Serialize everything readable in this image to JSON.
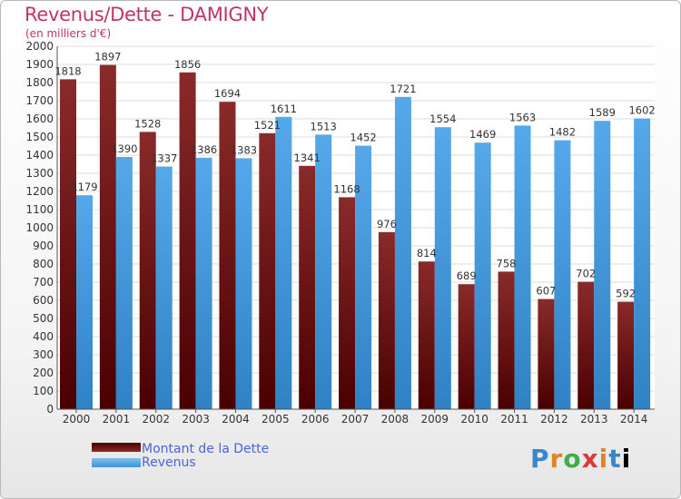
{
  "title": "Revenus/Dette - DAMIGNY",
  "subtitle": "(en milliers d'€)",
  "logo_text": "Proxiti",
  "logo_letters": [
    "P",
    "r",
    "o",
    "x",
    "i",
    "t",
    "i"
  ],
  "colors": {
    "title": "#c0346a",
    "debt_top": "#8a2a2a",
    "debt_bottom": "#4a0000",
    "revenue_top": "#7ec0f0",
    "revenue_bottom": "#3d94d6",
    "legend_text": "#4b63d6",
    "grid": "#dddddd"
  },
  "legend": {
    "debt_label": "Montant de la Dette",
    "revenue_label": "Revenus"
  },
  "chart_data": {
    "type": "bar",
    "categories": [
      "2000",
      "2001",
      "2002",
      "2003",
      "2004",
      "2005",
      "2006",
      "2007",
      "2008",
      "2009",
      "2010",
      "2011",
      "2012",
      "2013",
      "2014"
    ],
    "series": [
      {
        "name": "Montant de la Dette",
        "values": [
          1818,
          1897,
          1528,
          1856,
          1694,
          1521,
          1341,
          1168,
          976,
          814,
          689,
          758,
          607,
          702,
          592
        ]
      },
      {
        "name": "Revenus",
        "values": [
          1179,
          1390,
          1337,
          1386,
          1383,
          1611,
          1513,
          1452,
          1721,
          1554,
          1469,
          1563,
          1482,
          1589,
          1602
        ]
      }
    ],
    "title": "Revenus/Dette - DAMIGNY",
    "ylabel": "",
    "xlabel": "",
    "ylim": [
      0,
      2000
    ],
    "yticks": [
      0,
      100,
      200,
      300,
      400,
      500,
      600,
      700,
      800,
      900,
      1000,
      1100,
      1200,
      1300,
      1400,
      1500,
      1600,
      1700,
      1800,
      1900,
      2000
    ],
    "grid": true,
    "legend_position": "bottom-left"
  }
}
